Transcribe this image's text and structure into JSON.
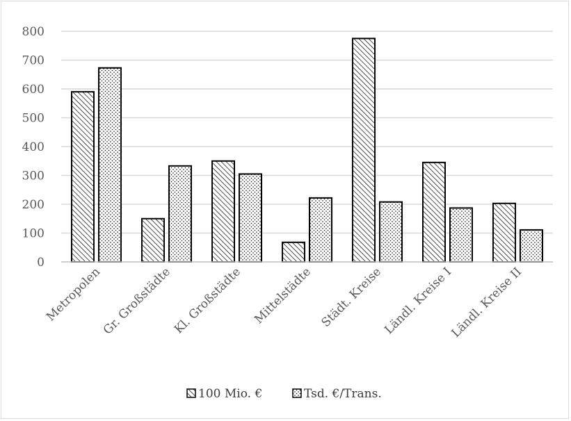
{
  "chart_data": {
    "type": "bar",
    "categories": [
      "Metropolen",
      "Gr. Großstädte",
      "Kl. Großstädte",
      "Mittelstädte",
      "Städt. Kreise",
      "Ländl. Kreise I",
      "Ländl. Kreise II"
    ],
    "series": [
      {
        "name": "100 Mio. €",
        "values": [
          590,
          150,
          350,
          68,
          775,
          345,
          203
        ],
        "pattern": "diagonal-hatch"
      },
      {
        "name": "Tsd. €/Trans.",
        "values": [
          673,
          333,
          305,
          222,
          208,
          187,
          111
        ],
        "pattern": "dots"
      }
    ],
    "ylim": [
      0,
      800
    ],
    "yticks": [
      "0",
      "100",
      "200",
      "300",
      "400",
      "500",
      "600",
      "700",
      "800"
    ],
    "grid": true,
    "legend_position": "bottom",
    "colors": {
      "bar_fill": "#ffffff",
      "bar_stroke": "#000000",
      "grid": "#d9d9d9",
      "axis": "#bfbfbf",
      "text": "#595959"
    }
  }
}
